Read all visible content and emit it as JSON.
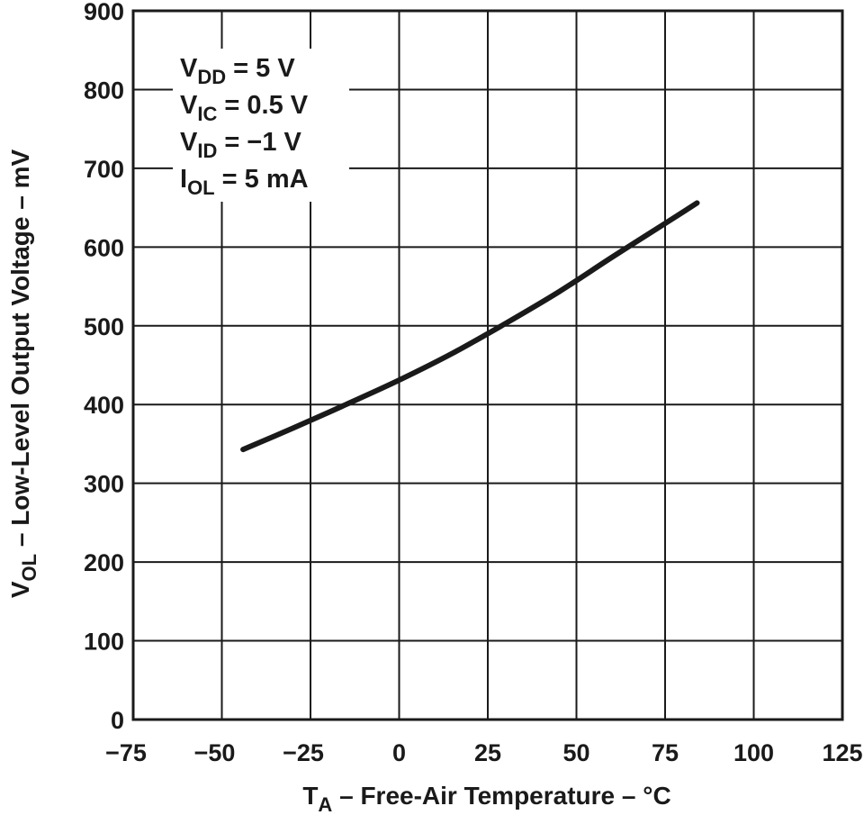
{
  "chart_data": {
    "type": "line",
    "xlabel": {
      "main": "T",
      "sub": "A",
      "rest": " – Free-Air Temperature – °C"
    },
    "ylabel": {
      "main": "V",
      "sub": "OL",
      "rest": " – Low-Level Output Voltage – mV"
    },
    "xlim": [
      -75,
      125
    ],
    "ylim": [
      0,
      900
    ],
    "xticks": [
      -75,
      -50,
      -25,
      0,
      25,
      50,
      75,
      100,
      125
    ],
    "yticks": [
      0,
      100,
      200,
      300,
      400,
      500,
      600,
      700,
      800,
      900
    ],
    "xtick_labels": [
      "−75",
      "−50",
      "−25",
      "0",
      "25",
      "50",
      "75",
      "100",
      "125"
    ],
    "ytick_labels": [
      "0",
      "100",
      "200",
      "300",
      "400",
      "500",
      "600",
      "700",
      "800",
      "900"
    ],
    "grid": true,
    "conditions": [
      {
        "main": "V",
        "sub": "DD",
        "rest": " = 5 V"
      },
      {
        "main": "V",
        "sub": "IC",
        "rest": " = 0.5 V"
      },
      {
        "main": "V",
        "sub": "ID",
        "rest": " = −1 V"
      },
      {
        "main": "I",
        "sub": "OL",
        "rest": " = 5 mA"
      }
    ],
    "series": [
      {
        "x": [
          -44,
          -30,
          -15,
          0,
          15,
          30,
          45,
          60,
          75,
          84
        ],
        "values": [
          343,
          370,
          400,
          431,
          465,
          503,
          543,
          587,
          630,
          656
        ]
      }
    ]
  }
}
